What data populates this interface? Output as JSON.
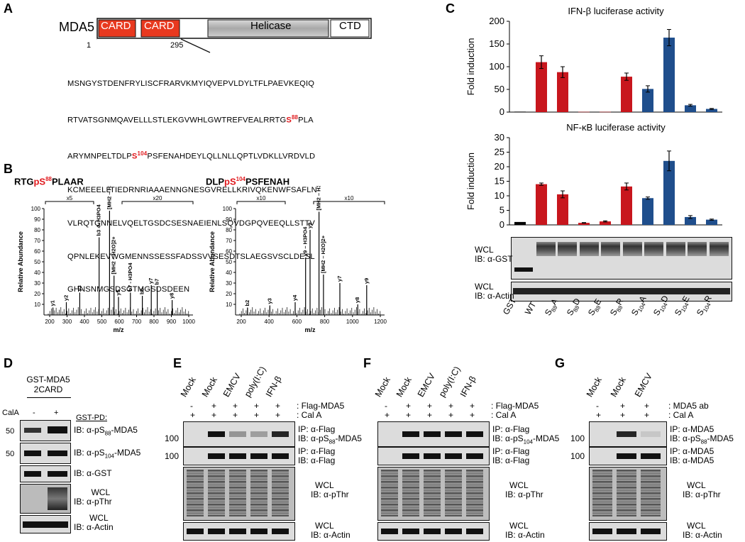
{
  "panels": {
    "A": "A",
    "B": "B",
    "C": "C",
    "D": "D",
    "E": "E",
    "F": "F",
    "G": "G"
  },
  "panelA": {
    "protein": "MDA5",
    "domains": [
      "CARD",
      "CARD",
      "Helicase",
      "CTD"
    ],
    "pos_start": "1",
    "pos_end": "295",
    "seq_lines": [
      [
        "MSNGYSTDENFRYLISCFRARVKMYIQVEPVLDYLTFLPAEVKEQIQ"
      ],
      [
        "RTVATSGNMQAVELLLSTLEKGVWHLGWTREFVEALRRTG",
        "S",
        "88",
        "PLA"
      ],
      [
        "ARYMNPELTDLP",
        "S",
        "104",
        "PSFENAHDEYLQLLNLLQPTLVDKLLVRDVLD"
      ],
      [
        "KCMEEELLTIEDRNRIAAAENNGNESGVRELLKRIVQKENWFSAFLN"
      ],
      [
        "VLRQTGNNELVQELTGSDCSESNAEIENLSQVDGPQVEEQLLSTTV"
      ],
      [
        "QPNLEKEVWGMENNSSESSFADSSVVSESDTSLAEGSVSCLDESL"
      ],
      [
        "GHNSNMGSDSGTMGSDSDEEN"
      ]
    ]
  },
  "panelB": {
    "spectra": [
      {
        "peptide_pre": "RTG",
        "peptide_site": "pS",
        "peptide_sup": "88",
        "peptide_post": "PLAAR",
        "zoom1": "x5",
        "zoom2": "x20",
        "xlabel": "m/z",
        "ylabel": "Relative Abundance",
        "xticks": [
          "200",
          "300",
          "400",
          "500",
          "600",
          "700",
          "800",
          "900",
          "1000"
        ],
        "yticks": [
          "10",
          "20",
          "30",
          "40",
          "50",
          "60",
          "70",
          "80",
          "90",
          "100"
        ],
        "peaks": [
          "y1",
          "y2",
          "y3",
          "b3 4- H3PO4",
          "[MH2 – H3PO4]2+",
          "[MH2 – H2O]2+",
          "y5",
          "b7 - H3PO4",
          "b6",
          "y7",
          "b7",
          "y8"
        ]
      },
      {
        "peptide_pre": "DLP",
        "peptide_site": "pS",
        "peptide_sup": "104",
        "peptide_post": "PSFENAH",
        "zoom1": "x10",
        "zoom2": "x10",
        "xlabel": "m/z",
        "ylabel": "Relative Abundance",
        "xticks": [
          "200",
          "400",
          "600",
          "800",
          "1000",
          "1200"
        ],
        "yticks": [
          "10",
          "20",
          "30",
          "40",
          "50",
          "60",
          "70",
          "80",
          "90",
          "100"
        ],
        "peaks": [
          "b2",
          "y3",
          "y4",
          "y9 – H3PO4",
          "y9",
          "[MH2 – H3PO4]2+",
          "[MH2 – H2O]2+",
          "y7",
          "y8",
          "y9"
        ]
      }
    ]
  },
  "chart_data": [
    {
      "type": "bar",
      "title": "IFN-β luciferase activity",
      "ylabel": "Fold induction",
      "ylim": [
        0,
        200
      ],
      "yticks": [
        0,
        50,
        100,
        150,
        200
      ],
      "categories": [
        "GST",
        "WT",
        "S88A",
        "S88D",
        "S88E",
        "S88R",
        "S104A",
        "S104D",
        "S104E",
        "S104R"
      ],
      "values": [
        1,
        110,
        88,
        0.5,
        0.5,
        78,
        51,
        164,
        15,
        7
      ],
      "errors": [
        0,
        14,
        12,
        0,
        0,
        8,
        7,
        18,
        2,
        1
      ],
      "colors": [
        "#000000",
        "#c8161d",
        "#c8161d",
        "#c8161d",
        "#c8161d",
        "#c8161d",
        "#1f4e8c",
        "#1f4e8c",
        "#1f4e8c",
        "#1f4e8c"
      ]
    },
    {
      "type": "bar",
      "title": "NF-κB luciferase activity",
      "ylabel": "Fold induction",
      "ylim": [
        0,
        30
      ],
      "yticks": [
        0,
        5,
        10,
        15,
        20,
        25,
        30
      ],
      "categories": [
        "GST",
        "WT",
        "S88A",
        "S88D",
        "S88E",
        "S88R",
        "S104A",
        "S104D",
        "S104E",
        "S104R"
      ],
      "values": [
        1,
        14,
        10.5,
        0.7,
        1.2,
        13.2,
        9.2,
        22,
        2.7,
        1.8
      ],
      "errors": [
        0,
        0.4,
        1.2,
        0.1,
        0.2,
        1.2,
        0.4,
        3.4,
        0.5,
        0.2
      ],
      "colors": [
        "#000000",
        "#c8161d",
        "#c8161d",
        "#c8161d",
        "#c8161d",
        "#c8161d",
        "#1f4e8c",
        "#1f4e8c",
        "#1f4e8c",
        "#1f4e8c"
      ]
    }
  ],
  "panelC": {
    "blot1": [
      "WCL",
      "IB: α-GST"
    ],
    "blot2": [
      "WCL",
      "IB: α-Actin"
    ],
    "lanes": [
      [
        "GST",
        ""
      ],
      [
        "WT",
        ""
      ],
      [
        "S",
        "88",
        "A"
      ],
      [
        "S",
        "88",
        "D"
      ],
      [
        "S",
        "88",
        "E"
      ],
      [
        "S",
        "88",
        "R"
      ],
      [
        "S",
        "104",
        "A"
      ],
      [
        "S",
        "104",
        "D"
      ],
      [
        "S",
        "104",
        "E"
      ],
      [
        "S",
        "104",
        "R"
      ]
    ]
  },
  "panelD": {
    "title1": "GST-MDA5",
    "title2": "2CARD",
    "cala": "CalA",
    "minus": "-",
    "plus": "+",
    "pd": "GST-PD:",
    "mw": [
      "50",
      "50"
    ],
    "labels": [
      [
        "IB: α-pS",
        "88",
        "-MDA5"
      ],
      [
        "IB: α-pS",
        "104",
        "-MDA5"
      ],
      [
        "IB: α-GST"
      ],
      [
        "WCL",
        "IB: α-pThr"
      ],
      [
        "WCL",
        "IB: α-Actin"
      ]
    ]
  },
  "panelE": {
    "lanes": [
      "Mock",
      "Mock",
      "EMCV",
      "poly(I:C)",
      "IFN-β"
    ],
    "row1": [
      "-",
      "+",
      "+",
      "+",
      "+"
    ],
    "row1_label": ": Flag-MDA5",
    "row2": [
      "+",
      "+",
      "+",
      "+",
      "+"
    ],
    "row2_label": ": Cal A",
    "mw": [
      "100",
      "100"
    ],
    "labels": [
      [
        "IP: α-Flag",
        "IB: α-pS",
        "88",
        "-MDA5"
      ],
      [
        "IP: α-Flag",
        "IB: α-Flag"
      ],
      [
        "WCL",
        "IB: α-pThr"
      ],
      [
        "WCL",
        "IB: α-Actin"
      ]
    ]
  },
  "panelF": {
    "lanes": [
      "Mock",
      "Mock",
      "EMCV",
      "poly(I:C)",
      "IFN-β"
    ],
    "row1": [
      "-",
      "+",
      "+",
      "+",
      "+"
    ],
    "row1_label": ": Flag-MDA5",
    "row2": [
      "+",
      "+",
      "+",
      "+",
      "+"
    ],
    "row2_label": ": Cal A",
    "labels": [
      [
        "IP: α-Flag",
        "IB: α-pS",
        "104",
        "-MDA5"
      ],
      [
        "IP: α-Flag",
        "IB: α-Flag"
      ],
      [
        "WCL",
        "IB: α-pThr"
      ],
      [
        "WCL",
        "IB: α-Actin"
      ]
    ]
  },
  "panelG": {
    "lanes": [
      "Mock",
      "Mock",
      "EMCV"
    ],
    "row1": [
      "-",
      "+",
      "+"
    ],
    "row1_label": ": MDA5 ab",
    "row2": [
      "+",
      "+",
      "+"
    ],
    "row2_label": ": Cal A",
    "mw": [
      "100",
      "100"
    ],
    "labels": [
      [
        "IP: α-MDA5",
        "IB: α-pS",
        "88",
        "-MDA5"
      ],
      [
        "IP: α-MDA5",
        "IB: α-MDA5"
      ],
      [
        "WCL",
        "IB: α-pThr"
      ],
      [
        "WCL",
        "IB: α-Actin"
      ]
    ]
  }
}
